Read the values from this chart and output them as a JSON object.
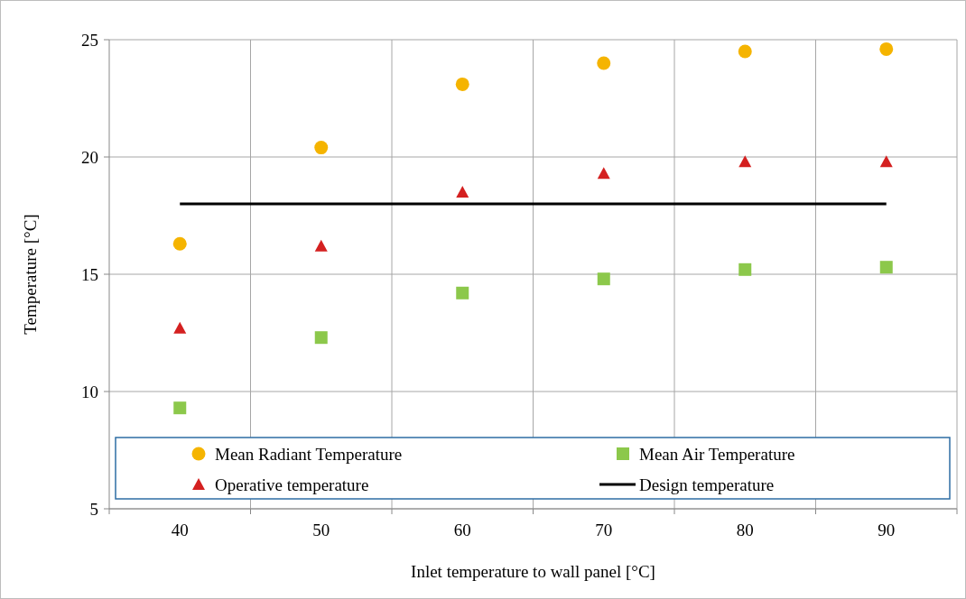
{
  "chart_data": {
    "type": "scatter",
    "xlabel": "Inlet temperature to wall panel [°C]",
    "ylabel": "Temperature [°C]",
    "categories": [
      "40",
      "50",
      "60",
      "70",
      "80",
      "90"
    ],
    "ylim": [
      5,
      25
    ],
    "yticks": [
      5,
      10,
      15,
      20,
      25
    ],
    "grid": true,
    "legend": "bottom",
    "series": [
      {
        "name": "Mean Radiant Temperature",
        "color": "#f5b400",
        "marker": "circle",
        "values": [
          16.3,
          20.4,
          23.1,
          24.0,
          24.5,
          24.6
        ]
      },
      {
        "name": "Mean Air Temperature",
        "color": "#8cc84b",
        "marker": "square",
        "values": [
          9.3,
          12.3,
          14.2,
          14.8,
          15.2,
          15.3
        ]
      },
      {
        "name": "Operative temperature",
        "color": "#d42020",
        "marker": "triangle",
        "values": [
          12.7,
          16.2,
          18.5,
          19.3,
          19.8,
          19.8
        ]
      },
      {
        "name": "Design temperature",
        "type": "line",
        "color": "#000000",
        "marker": "none",
        "values": [
          18,
          18,
          18,
          18,
          18,
          18
        ]
      }
    ]
  }
}
